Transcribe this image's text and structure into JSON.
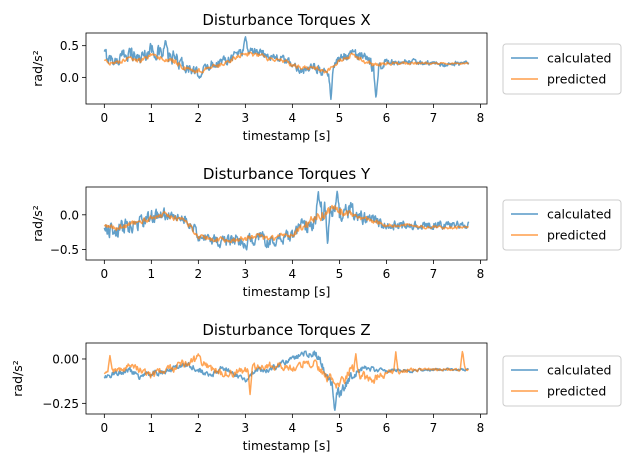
{
  "colors": {
    "calculated": "#1f77b4",
    "predicted": "#ff7f0e",
    "legend_border": "#cccccc"
  },
  "chart_data": [
    {
      "type": "line",
      "title": "Disturbance Torques X",
      "xlabel": "timestamp [s]",
      "ylabel": "rad/s²",
      "xlim": [
        -0.39,
        8.14
      ],
      "ylim": [
        -0.42,
        0.7
      ],
      "xticks": [
        0,
        1,
        2,
        3,
        4,
        5,
        6,
        7,
        8
      ],
      "yticks": [
        0.0,
        0.5
      ],
      "ytick_labels": [
        "0.0",
        "0.5"
      ],
      "legend": "outside-right",
      "series": [
        {
          "name": "calculated",
          "x": [
            0,
            0.25,
            0.5,
            0.75,
            1,
            1.25,
            1.5,
            1.75,
            2,
            2.25,
            2.5,
            2.75,
            3,
            3.25,
            3.5,
            3.75,
            4,
            4.25,
            4.5,
            4.75,
            5,
            5.25,
            5.5,
            5.75,
            6,
            6.25,
            6.5,
            6.75,
            7,
            7.25,
            7.5,
            7.75
          ],
          "y": [
            0.35,
            0.25,
            0.4,
            0.3,
            0.45,
            0.35,
            0.3,
            0.15,
            0.05,
            0.2,
            0.25,
            0.35,
            0.45,
            0.4,
            0.35,
            0.3,
            0.2,
            0.1,
            0.15,
            0.05,
            0.3,
            0.4,
            0.3,
            0.15,
            0.25,
            0.2,
            0.25,
            0.22,
            0.22,
            0.2,
            0.22,
            0.22
          ],
          "amplitude": [
            0.15,
            0.12,
            0.15,
            0.15,
            0.15,
            0.15,
            0.15,
            0.12,
            0.1,
            0.1,
            0.1,
            0.1,
            0.12,
            0.1,
            0.1,
            0.08,
            0.08,
            0.08,
            0.1,
            0.12,
            0.1,
            0.12,
            0.12,
            0.15,
            0.08,
            0.06,
            0.06,
            0.05,
            0.05,
            0.05,
            0.05,
            0.04
          ],
          "spikes": [
            {
              "x": 4.82,
              "y": -0.35
            },
            {
              "x": 5.78,
              "y": -0.35
            },
            {
              "x": 3.0,
              "y": 0.65
            },
            {
              "x": 1.3,
              "y": 0.6
            }
          ]
        },
        {
          "name": "predicted",
          "x": [
            0,
            0.25,
            0.5,
            0.75,
            1,
            1.25,
            1.5,
            1.75,
            2,
            2.25,
            2.5,
            2.75,
            3,
            3.25,
            3.5,
            3.75,
            4,
            4.25,
            4.5,
            4.75,
            5,
            5.25,
            5.5,
            5.75,
            6,
            6.25,
            6.5,
            6.75,
            7,
            7.25,
            7.5,
            7.75
          ],
          "y": [
            0.25,
            0.22,
            0.3,
            0.25,
            0.35,
            0.3,
            0.25,
            0.12,
            0.1,
            0.15,
            0.2,
            0.3,
            0.38,
            0.35,
            0.3,
            0.28,
            0.2,
            0.15,
            0.15,
            0.1,
            0.25,
            0.35,
            0.28,
            0.2,
            0.22,
            0.22,
            0.22,
            0.22,
            0.22,
            0.22,
            0.22,
            0.22
          ],
          "amplitude": [
            0.04,
            0.04,
            0.05,
            0.05,
            0.05,
            0.05,
            0.06,
            0.06,
            0.05,
            0.05,
            0.05,
            0.05,
            0.05,
            0.05,
            0.05,
            0.04,
            0.05,
            0.05,
            0.05,
            0.06,
            0.05,
            0.05,
            0.05,
            0.06,
            0.03,
            0.03,
            0.03,
            0.03,
            0.02,
            0.02,
            0.02,
            0.02
          ],
          "spikes": []
        }
      ]
    },
    {
      "type": "line",
      "title": "Disturbance Torques Y",
      "xlabel": "timestamp [s]",
      "ylabel": "rad/s²",
      "xlim": [
        -0.39,
        8.14
      ],
      "ylim": [
        -0.65,
        0.4
      ],
      "xticks": [
        0,
        1,
        2,
        3,
        4,
        5,
        6,
        7,
        8
      ],
      "yticks": [
        -0.5,
        0.0
      ],
      "ytick_labels": [
        "−0.5",
        "0.0"
      ],
      "legend": "outside-right",
      "series": [
        {
          "name": "calculated",
          "x": [
            0,
            0.25,
            0.5,
            0.75,
            1,
            1.25,
            1.5,
            1.75,
            2,
            2.25,
            2.5,
            2.75,
            3,
            3.25,
            3.5,
            3.75,
            4,
            4.25,
            4.5,
            4.75,
            5,
            5.25,
            5.5,
            5.75,
            6,
            6.25,
            6.5,
            6.75,
            7,
            7.25,
            7.5,
            7.75
          ],
          "y": [
            -0.2,
            -0.25,
            -0.15,
            -0.1,
            -0.05,
            0.0,
            -0.05,
            -0.05,
            -0.3,
            -0.35,
            -0.4,
            -0.35,
            -0.4,
            -0.3,
            -0.4,
            -0.35,
            -0.3,
            -0.15,
            -0.05,
            0.1,
            0.05,
            0.05,
            -0.05,
            -0.1,
            -0.15,
            -0.15,
            -0.15,
            -0.15,
            -0.15,
            -0.15,
            -0.15,
            -0.15
          ],
          "amplitude": [
            0.15,
            0.15,
            0.15,
            0.15,
            0.15,
            0.15,
            0.12,
            0.1,
            0.1,
            0.1,
            0.1,
            0.12,
            0.12,
            0.12,
            0.1,
            0.1,
            0.12,
            0.15,
            0.2,
            0.2,
            0.2,
            0.15,
            0.12,
            0.12,
            0.1,
            0.1,
            0.08,
            0.08,
            0.08,
            0.08,
            0.08,
            0.06
          ],
          "spikes": [
            {
              "x": 4.55,
              "y": 0.35
            },
            {
              "x": 4.95,
              "y": 0.36
            },
            {
              "x": 4.75,
              "y": -0.45
            }
          ]
        },
        {
          "name": "predicted",
          "x": [
            0,
            0.25,
            0.5,
            0.75,
            1,
            1.25,
            1.5,
            1.75,
            2,
            2.25,
            2.5,
            2.75,
            3,
            3.25,
            3.5,
            3.75,
            4,
            4.25,
            4.5,
            4.75,
            5,
            5.25,
            5.5,
            5.75,
            6,
            6.25,
            6.5,
            6.75,
            7,
            7.25,
            7.5,
            7.75
          ],
          "y": [
            -0.15,
            -0.2,
            -0.15,
            -0.1,
            -0.05,
            0.0,
            -0.05,
            -0.1,
            -0.3,
            -0.35,
            -0.35,
            -0.35,
            -0.35,
            -0.3,
            -0.35,
            -0.3,
            -0.3,
            -0.15,
            -0.05,
            0.05,
            0.05,
            0.0,
            -0.05,
            -0.1,
            -0.15,
            -0.15,
            -0.15,
            -0.18,
            -0.18,
            -0.18,
            -0.18,
            -0.18
          ],
          "amplitude": [
            0.05,
            0.05,
            0.05,
            0.05,
            0.05,
            0.05,
            0.05,
            0.05,
            0.05,
            0.05,
            0.05,
            0.05,
            0.05,
            0.05,
            0.05,
            0.05,
            0.05,
            0.08,
            0.1,
            0.1,
            0.1,
            0.06,
            0.05,
            0.05,
            0.04,
            0.03,
            0.03,
            0.03,
            0.03,
            0.03,
            0.03,
            0.02
          ],
          "spikes": []
        }
      ]
    },
    {
      "type": "line",
      "title": "Disturbance Torques Z",
      "xlabel": "timestamp [s]",
      "ylabel": "rad/s²",
      "xlim": [
        -0.39,
        8.14
      ],
      "ylim": [
        -0.31,
        0.09
      ],
      "xticks": [
        0,
        1,
        2,
        3,
        4,
        5,
        6,
        7,
        8
      ],
      "yticks": [
        -0.25,
        0.0
      ],
      "ytick_labels": [
        "−0.25",
        "0.00"
      ],
      "legend": "outside-right",
      "series": [
        {
          "name": "calculated",
          "x": [
            0,
            0.25,
            0.5,
            0.75,
            1,
            1.25,
            1.5,
            1.75,
            2,
            2.25,
            2.5,
            2.75,
            3,
            3.25,
            3.5,
            3.75,
            4,
            4.25,
            4.5,
            4.75,
            5,
            5.25,
            5.5,
            5.75,
            6,
            6.25,
            6.5,
            6.75,
            7,
            7.25,
            7.5,
            7.75
          ],
          "y": [
            -0.1,
            -0.08,
            -0.06,
            -0.1,
            -0.08,
            -0.08,
            -0.05,
            -0.03,
            -0.06,
            -0.1,
            -0.05,
            -0.08,
            -0.12,
            -0.06,
            -0.06,
            -0.03,
            0.0,
            0.03,
            0.03,
            -0.1,
            -0.2,
            -0.1,
            -0.05,
            -0.06,
            -0.07,
            -0.06,
            -0.07,
            -0.06,
            -0.06,
            -0.06,
            -0.06,
            -0.06
          ],
          "amplitude": [
            0.02,
            0.02,
            0.02,
            0.02,
            0.02,
            0.02,
            0.02,
            0.02,
            0.02,
            0.02,
            0.02,
            0.02,
            0.02,
            0.02,
            0.02,
            0.02,
            0.02,
            0.02,
            0.03,
            0.03,
            0.04,
            0.03,
            0.02,
            0.02,
            0.01,
            0.01,
            0.01,
            0.01,
            0.01,
            0.01,
            0.01,
            0.01
          ],
          "spikes": [
            {
              "x": 4.9,
              "y": -0.3
            }
          ]
        },
        {
          "name": "predicted",
          "x": [
            0,
            0.25,
            0.5,
            0.75,
            1,
            1.25,
            1.5,
            1.75,
            2,
            2.25,
            2.5,
            2.75,
            3,
            3.25,
            3.5,
            3.75,
            4,
            4.25,
            4.5,
            4.75,
            5,
            5.25,
            5.5,
            5.75,
            6,
            6.25,
            6.5,
            6.75,
            7,
            7.25,
            7.5,
            7.75
          ],
          "y": [
            -0.08,
            -0.06,
            -0.05,
            -0.06,
            -0.1,
            -0.06,
            -0.05,
            -0.02,
            0.0,
            -0.05,
            -0.08,
            -0.08,
            -0.06,
            -0.04,
            -0.03,
            -0.04,
            -0.05,
            -0.02,
            -0.03,
            -0.1,
            -0.15,
            -0.05,
            -0.1,
            -0.12,
            -0.08,
            -0.07,
            -0.06,
            -0.06,
            -0.06,
            -0.06,
            -0.06,
            -0.06
          ],
          "amplitude": [
            0.02,
            0.02,
            0.03,
            0.03,
            0.03,
            0.03,
            0.03,
            0.03,
            0.03,
            0.03,
            0.03,
            0.03,
            0.03,
            0.03,
            0.03,
            0.03,
            0.03,
            0.03,
            0.03,
            0.04,
            0.04,
            0.04,
            0.04,
            0.04,
            0.02,
            0.02,
            0.02,
            0.01,
            0.01,
            0.01,
            0.01,
            0.01
          ],
          "spikes": [
            {
              "x": 0.12,
              "y": 0.02
            },
            {
              "x": 6.2,
              "y": 0.04
            },
            {
              "x": 7.62,
              "y": 0.05
            },
            {
              "x": 2.0,
              "y": 0.03
            },
            {
              "x": 3.1,
              "y": -0.2
            },
            {
              "x": 5.35,
              "y": 0.03
            }
          ]
        }
      ]
    }
  ]
}
